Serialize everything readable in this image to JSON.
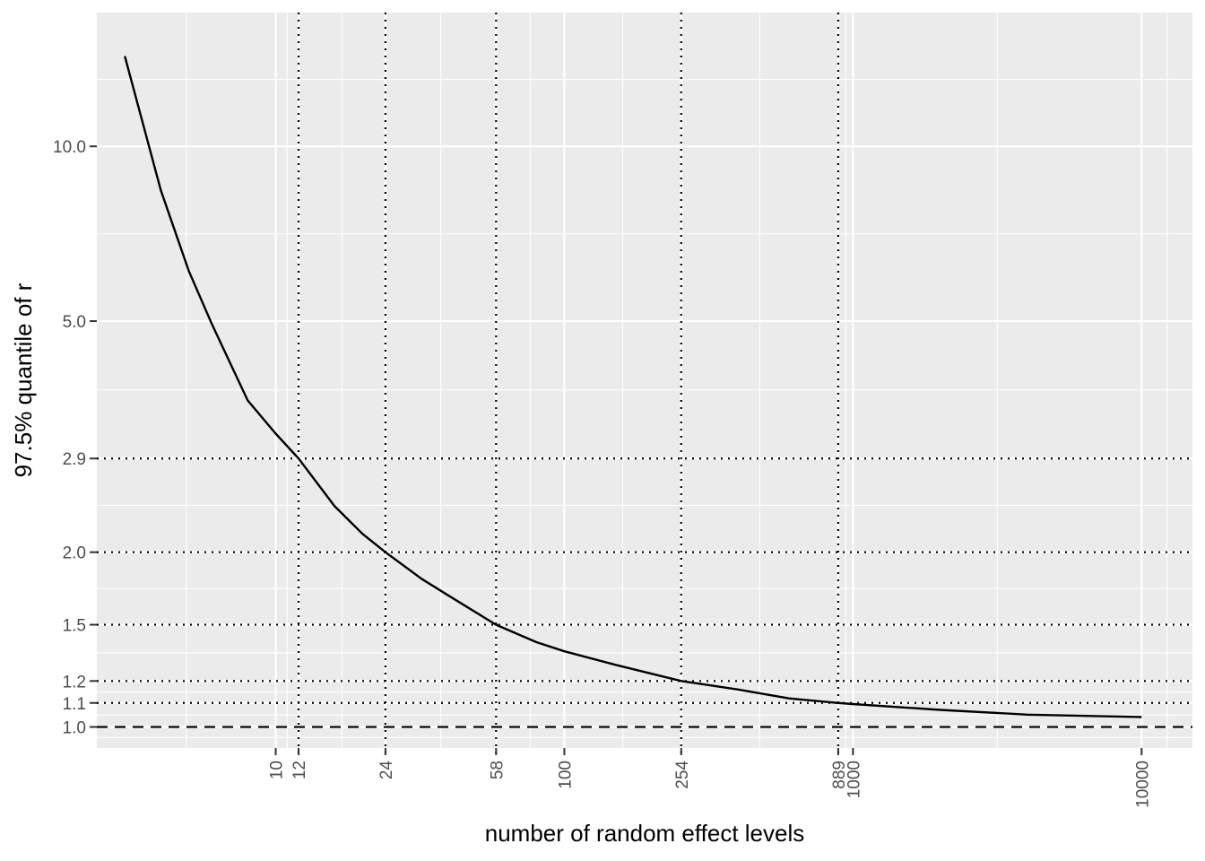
{
  "chart_data": {
    "type": "line",
    "xlabel": "number of random effect levels",
    "ylabel": "97.5% quantile of r",
    "x_scale": "log10",
    "y_scale": "log10",
    "xlim": [
      2.4,
      15000
    ],
    "ylim": [
      0.92,
      17
    ],
    "x_ticks": [
      10,
      12,
      24,
      58,
      100,
      254,
      889,
      1000,
      10000
    ],
    "x_tick_labels": [
      "10",
      "12",
      "24",
      "58",
      "100",
      "254",
      "889",
      "1000",
      "10000"
    ],
    "y_ticks": [
      1.0,
      1.1,
      1.2,
      1.5,
      2.0,
      2.9,
      5.0,
      10.0
    ],
    "y_tick_labels": [
      "1.0",
      "1.1",
      "1.2",
      "1.5",
      "2.0",
      "2.9",
      "5.0",
      "10.0"
    ],
    "grid": true,
    "series": [
      {
        "style": "solid",
        "color": "#000000",
        "x": [
          3,
          4,
          5,
          6,
          8,
          10,
          12,
          16,
          20,
          24,
          32,
          40,
          58,
          80,
          100,
          150,
          254,
          400,
          600,
          889,
          1000,
          2000,
          4000,
          10000
        ],
        "y": [
          14.3,
          8.4,
          6.1,
          4.95,
          3.65,
          3.2,
          2.9,
          2.4,
          2.15,
          2.0,
          1.8,
          1.68,
          1.5,
          1.4,
          1.35,
          1.28,
          1.2,
          1.16,
          1.12,
          1.1,
          1.095,
          1.07,
          1.05,
          1.04
        ]
      }
    ],
    "reference_lines": {
      "horizontal_dotted": [
        1.1,
        1.2,
        1.5,
        2.0,
        2.9
      ],
      "horizontal_dashed": [
        1.0
      ],
      "vertical_dotted": [
        12,
        24,
        58,
        254,
        889
      ]
    },
    "colors": {
      "panel_background": "#ebebeb",
      "grid_line": "#ffffff",
      "curve": "#000000",
      "tick_label": "#4d4d4d"
    }
  }
}
